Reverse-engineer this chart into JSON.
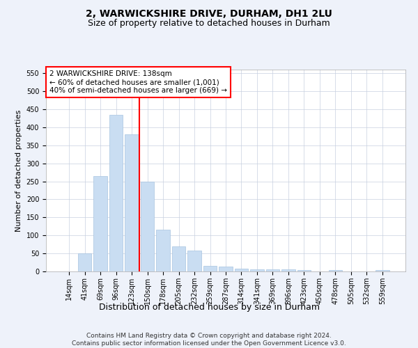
{
  "title": "2, WARWICKSHIRE DRIVE, DURHAM, DH1 2LU",
  "subtitle": "Size of property relative to detached houses in Durham",
  "xlabel": "Distribution of detached houses by size in Durham",
  "ylabel": "Number of detached properties",
  "categories": [
    "14sqm",
    "41sqm",
    "69sqm",
    "96sqm",
    "123sqm",
    "150sqm",
    "178sqm",
    "205sqm",
    "232sqm",
    "259sqm",
    "287sqm",
    "314sqm",
    "341sqm",
    "369sqm",
    "396sqm",
    "423sqm",
    "450sqm",
    "478sqm",
    "505sqm",
    "532sqm",
    "559sqm"
  ],
  "values": [
    0,
    50,
    265,
    435,
    380,
    250,
    115,
    70,
    58,
    15,
    13,
    8,
    5,
    5,
    5,
    3,
    0,
    3,
    0,
    0,
    3
  ],
  "bar_color": "#c9ddf2",
  "bar_edge_color": "#a8c4e0",
  "vline_x": 4.5,
  "vline_color": "red",
  "vline_linewidth": 1.5,
  "annotation_box_text": "2 WARWICKSHIRE DRIVE: 138sqm\n← 60% of detached houses are smaller (1,001)\n40% of semi-detached houses are larger (669) →",
  "box_edge_color": "red",
  "ylim": [
    0,
    560
  ],
  "yticks": [
    0,
    50,
    100,
    150,
    200,
    250,
    300,
    350,
    400,
    450,
    500,
    550
  ],
  "title_fontsize": 10,
  "subtitle_fontsize": 9,
  "xlabel_fontsize": 9,
  "ylabel_fontsize": 8,
  "tick_fontsize": 7,
  "annotation_fontsize": 7.5,
  "footer_text": "Contains HM Land Registry data © Crown copyright and database right 2024.\nContains public sector information licensed under the Open Government Licence v3.0.",
  "footer_fontsize": 6.5,
  "background_color": "#eef2fa",
  "plot_background_color": "#ffffff",
  "grid_color": "#c8d0e0"
}
